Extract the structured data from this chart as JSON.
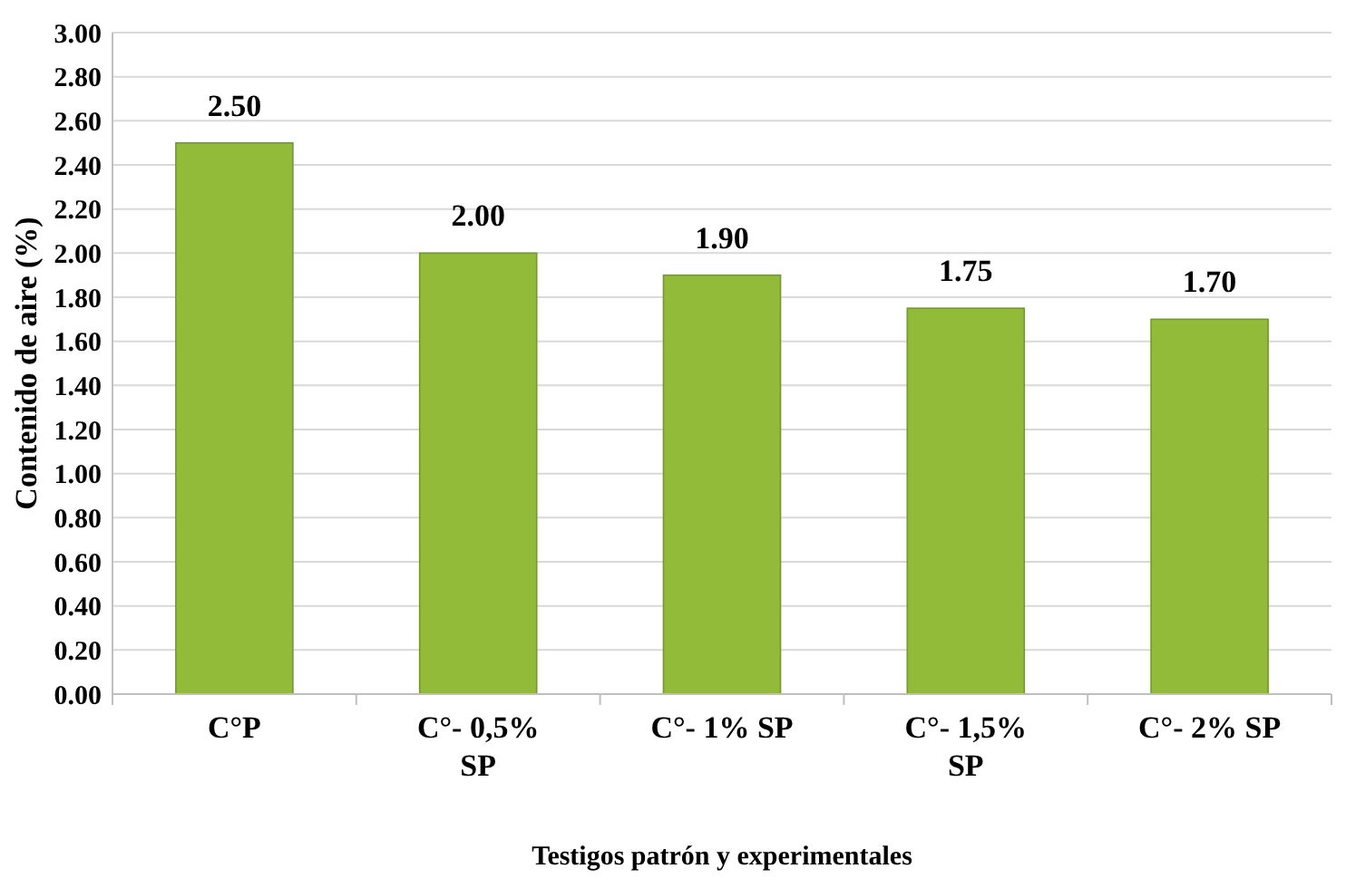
{
  "chart_data": {
    "type": "bar",
    "xlabel": "Testigos patrón y experimentales",
    "ylabel": "Contenido de aire (%)",
    "categories": [
      "C°P",
      "C°- 0,5% SP",
      "C°- 1% SP",
      "C°- 1,5% SP",
      "C°- 2% SP"
    ],
    "values": [
      2.5,
      2.0,
      1.9,
      1.75,
      1.7
    ],
    "color": "#92bb3a",
    "value_labels": [
      "2.50",
      "2.00",
      "1.90",
      "1.75",
      "1.70"
    ],
    "ylim": [
      0,
      3
    ],
    "yticks": [
      {
        "value": 0,
        "label": "0.00"
      },
      {
        "value": 0.2,
        "label": "0.20"
      },
      {
        "value": 0.4,
        "label": "0.40"
      },
      {
        "value": 0.6,
        "label": "0.60"
      },
      {
        "value": 0.8,
        "label": "0.80"
      },
      {
        "value": 1,
        "label": "1.00"
      },
      {
        "value": 1.2,
        "label": "1.20"
      },
      {
        "value": 1.4,
        "label": "1.40"
      },
      {
        "value": 1.6,
        "label": "1.60"
      },
      {
        "value": 1.8,
        "label": "1.80"
      },
      {
        "value": 2,
        "label": "2.00"
      },
      {
        "value": 2.2,
        "label": "2.20"
      },
      {
        "value": 2.4,
        "label": "2.40"
      },
      {
        "value": 2.6,
        "label": "2.60"
      },
      {
        "value": 2.8,
        "label": "2.80"
      },
      {
        "value": 3,
        "label": "3.00"
      }
    ],
    "grid": "y"
  }
}
